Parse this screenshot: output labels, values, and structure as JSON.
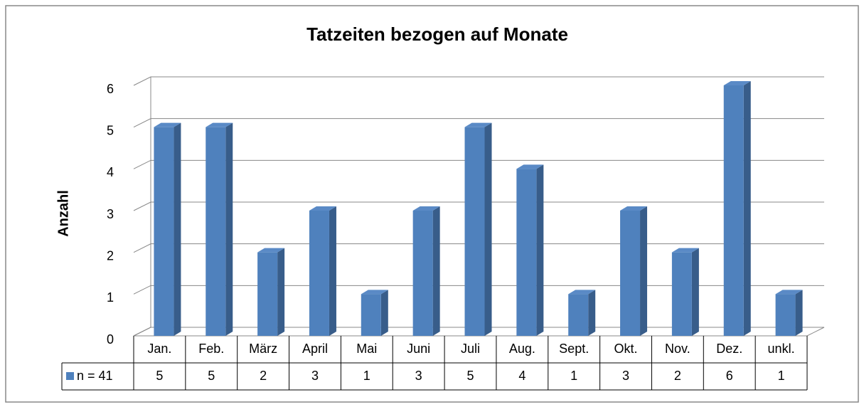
{
  "chart_data": {
    "type": "bar",
    "title": "Tatzeiten bezogen auf Monate",
    "y_label": "Anzahl",
    "categories": [
      "Jan.",
      "Feb.",
      "März",
      "April",
      "Mai",
      "Juni",
      "Juli",
      "Aug.",
      "Sept.",
      "Okt.",
      "Nov.",
      "Dez.",
      "unkl."
    ],
    "series": [
      {
        "name": "n = 41",
        "color": "#4f81bd",
        "values": [
          5,
          5,
          2,
          3,
          1,
          3,
          5,
          4,
          1,
          3,
          2,
          6,
          1
        ]
      }
    ],
    "ylim": [
      0,
      6
    ],
    "yticks": [
      0,
      1,
      2,
      3,
      4,
      5,
      6
    ],
    "grid": true
  }
}
